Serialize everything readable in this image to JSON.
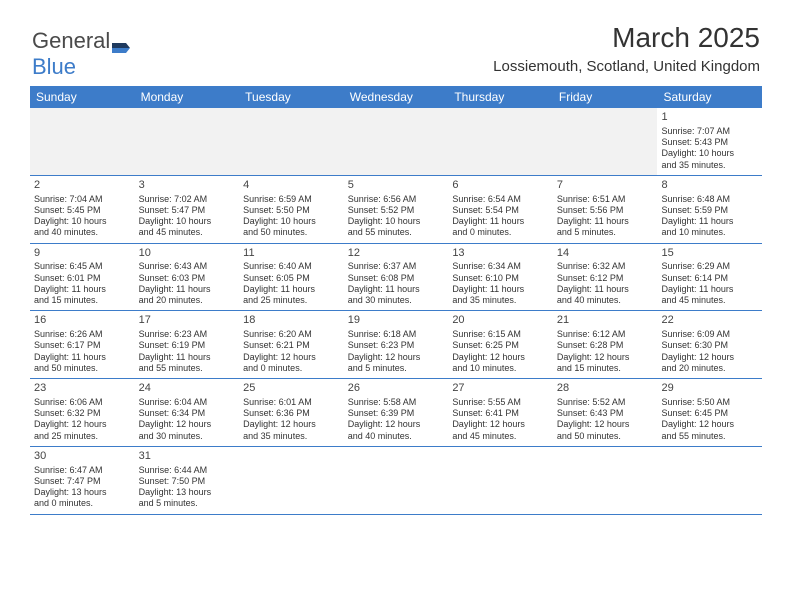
{
  "brand": {
    "part1": "General",
    "part2": "Blue"
  },
  "title": "March 2025",
  "subtitle": "Lossiemouth, Scotland, United Kingdom",
  "colors": {
    "header_bg": "#3d7cc9",
    "header_text": "#ffffff",
    "border": "#3d7cc9",
    "blank_bg": "#f2f2f2",
    "text": "#333333"
  },
  "days_of_week": [
    "Sunday",
    "Monday",
    "Tuesday",
    "Wednesday",
    "Thursday",
    "Friday",
    "Saturday"
  ],
  "weeks": [
    [
      {
        "blank": true
      },
      {
        "blank": true
      },
      {
        "blank": true
      },
      {
        "blank": true
      },
      {
        "blank": true
      },
      {
        "blank": true
      },
      {
        "num": "1",
        "sunrise": "Sunrise: 7:07 AM",
        "sunset": "Sunset: 5:43 PM",
        "daylight1": "Daylight: 10 hours",
        "daylight2": "and 35 minutes."
      }
    ],
    [
      {
        "num": "2",
        "sunrise": "Sunrise: 7:04 AM",
        "sunset": "Sunset: 5:45 PM",
        "daylight1": "Daylight: 10 hours",
        "daylight2": "and 40 minutes."
      },
      {
        "num": "3",
        "sunrise": "Sunrise: 7:02 AM",
        "sunset": "Sunset: 5:47 PM",
        "daylight1": "Daylight: 10 hours",
        "daylight2": "and 45 minutes."
      },
      {
        "num": "4",
        "sunrise": "Sunrise: 6:59 AM",
        "sunset": "Sunset: 5:50 PM",
        "daylight1": "Daylight: 10 hours",
        "daylight2": "and 50 minutes."
      },
      {
        "num": "5",
        "sunrise": "Sunrise: 6:56 AM",
        "sunset": "Sunset: 5:52 PM",
        "daylight1": "Daylight: 10 hours",
        "daylight2": "and 55 minutes."
      },
      {
        "num": "6",
        "sunrise": "Sunrise: 6:54 AM",
        "sunset": "Sunset: 5:54 PM",
        "daylight1": "Daylight: 11 hours",
        "daylight2": "and 0 minutes."
      },
      {
        "num": "7",
        "sunrise": "Sunrise: 6:51 AM",
        "sunset": "Sunset: 5:56 PM",
        "daylight1": "Daylight: 11 hours",
        "daylight2": "and 5 minutes."
      },
      {
        "num": "8",
        "sunrise": "Sunrise: 6:48 AM",
        "sunset": "Sunset: 5:59 PM",
        "daylight1": "Daylight: 11 hours",
        "daylight2": "and 10 minutes."
      }
    ],
    [
      {
        "num": "9",
        "sunrise": "Sunrise: 6:45 AM",
        "sunset": "Sunset: 6:01 PM",
        "daylight1": "Daylight: 11 hours",
        "daylight2": "and 15 minutes."
      },
      {
        "num": "10",
        "sunrise": "Sunrise: 6:43 AM",
        "sunset": "Sunset: 6:03 PM",
        "daylight1": "Daylight: 11 hours",
        "daylight2": "and 20 minutes."
      },
      {
        "num": "11",
        "sunrise": "Sunrise: 6:40 AM",
        "sunset": "Sunset: 6:05 PM",
        "daylight1": "Daylight: 11 hours",
        "daylight2": "and 25 minutes."
      },
      {
        "num": "12",
        "sunrise": "Sunrise: 6:37 AM",
        "sunset": "Sunset: 6:08 PM",
        "daylight1": "Daylight: 11 hours",
        "daylight2": "and 30 minutes."
      },
      {
        "num": "13",
        "sunrise": "Sunrise: 6:34 AM",
        "sunset": "Sunset: 6:10 PM",
        "daylight1": "Daylight: 11 hours",
        "daylight2": "and 35 minutes."
      },
      {
        "num": "14",
        "sunrise": "Sunrise: 6:32 AM",
        "sunset": "Sunset: 6:12 PM",
        "daylight1": "Daylight: 11 hours",
        "daylight2": "and 40 minutes."
      },
      {
        "num": "15",
        "sunrise": "Sunrise: 6:29 AM",
        "sunset": "Sunset: 6:14 PM",
        "daylight1": "Daylight: 11 hours",
        "daylight2": "and 45 minutes."
      }
    ],
    [
      {
        "num": "16",
        "sunrise": "Sunrise: 6:26 AM",
        "sunset": "Sunset: 6:17 PM",
        "daylight1": "Daylight: 11 hours",
        "daylight2": "and 50 minutes."
      },
      {
        "num": "17",
        "sunrise": "Sunrise: 6:23 AM",
        "sunset": "Sunset: 6:19 PM",
        "daylight1": "Daylight: 11 hours",
        "daylight2": "and 55 minutes."
      },
      {
        "num": "18",
        "sunrise": "Sunrise: 6:20 AM",
        "sunset": "Sunset: 6:21 PM",
        "daylight1": "Daylight: 12 hours",
        "daylight2": "and 0 minutes."
      },
      {
        "num": "19",
        "sunrise": "Sunrise: 6:18 AM",
        "sunset": "Sunset: 6:23 PM",
        "daylight1": "Daylight: 12 hours",
        "daylight2": "and 5 minutes."
      },
      {
        "num": "20",
        "sunrise": "Sunrise: 6:15 AM",
        "sunset": "Sunset: 6:25 PM",
        "daylight1": "Daylight: 12 hours",
        "daylight2": "and 10 minutes."
      },
      {
        "num": "21",
        "sunrise": "Sunrise: 6:12 AM",
        "sunset": "Sunset: 6:28 PM",
        "daylight1": "Daylight: 12 hours",
        "daylight2": "and 15 minutes."
      },
      {
        "num": "22",
        "sunrise": "Sunrise: 6:09 AM",
        "sunset": "Sunset: 6:30 PM",
        "daylight1": "Daylight: 12 hours",
        "daylight2": "and 20 minutes."
      }
    ],
    [
      {
        "num": "23",
        "sunrise": "Sunrise: 6:06 AM",
        "sunset": "Sunset: 6:32 PM",
        "daylight1": "Daylight: 12 hours",
        "daylight2": "and 25 minutes."
      },
      {
        "num": "24",
        "sunrise": "Sunrise: 6:04 AM",
        "sunset": "Sunset: 6:34 PM",
        "daylight1": "Daylight: 12 hours",
        "daylight2": "and 30 minutes."
      },
      {
        "num": "25",
        "sunrise": "Sunrise: 6:01 AM",
        "sunset": "Sunset: 6:36 PM",
        "daylight1": "Daylight: 12 hours",
        "daylight2": "and 35 minutes."
      },
      {
        "num": "26",
        "sunrise": "Sunrise: 5:58 AM",
        "sunset": "Sunset: 6:39 PM",
        "daylight1": "Daylight: 12 hours",
        "daylight2": "and 40 minutes."
      },
      {
        "num": "27",
        "sunrise": "Sunrise: 5:55 AM",
        "sunset": "Sunset: 6:41 PM",
        "daylight1": "Daylight: 12 hours",
        "daylight2": "and 45 minutes."
      },
      {
        "num": "28",
        "sunrise": "Sunrise: 5:52 AM",
        "sunset": "Sunset: 6:43 PM",
        "daylight1": "Daylight: 12 hours",
        "daylight2": "and 50 minutes."
      },
      {
        "num": "29",
        "sunrise": "Sunrise: 5:50 AM",
        "sunset": "Sunset: 6:45 PM",
        "daylight1": "Daylight: 12 hours",
        "daylight2": "and 55 minutes."
      }
    ],
    [
      {
        "num": "30",
        "sunrise": "Sunrise: 6:47 AM",
        "sunset": "Sunset: 7:47 PM",
        "daylight1": "Daylight: 13 hours",
        "daylight2": "and 0 minutes."
      },
      {
        "num": "31",
        "sunrise": "Sunrise: 6:44 AM",
        "sunset": "Sunset: 7:50 PM",
        "daylight1": "Daylight: 13 hours",
        "daylight2": "and 5 minutes."
      },
      {
        "blank": true
      },
      {
        "blank": true
      },
      {
        "blank": true
      },
      {
        "blank": true
      },
      {
        "blank": true
      }
    ]
  ]
}
